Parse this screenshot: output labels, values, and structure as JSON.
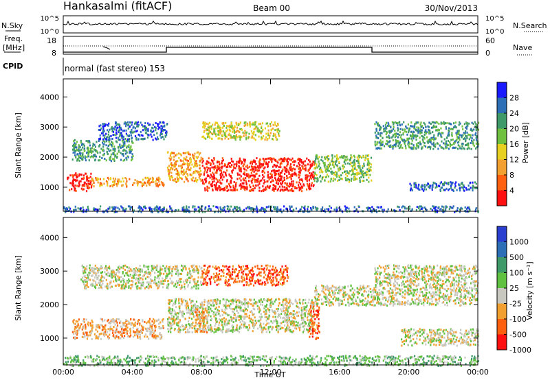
{
  "header": {
    "station": "Hankasalmi (fitACF)",
    "beam": "Beam 00",
    "date": "30/Nov/2013"
  },
  "nsky_panel": {
    "left_label": "N.Sky",
    "left_ticks": [
      "10^5",
      "10^0"
    ],
    "right_label": "N.Search",
    "right_ticks": [
      "10^5",
      "10^0"
    ]
  },
  "freq_panel": {
    "left_label_line1": "Freq.",
    "left_label_line2": "[MHz]",
    "left_ticks": [
      "18",
      "8"
    ],
    "right_label": "Nave",
    "right_ticks": [
      "60",
      "0"
    ]
  },
  "cpid_panel": {
    "label": "CPID",
    "mode_text": "normal (fast stereo) 153"
  },
  "chart_data": [
    {
      "type": "heatmap",
      "name": "power",
      "ylabel": "Slant Range [km]",
      "xlabel": "",
      "x_ticks": [
        "00:00",
        "04:00",
        "08:00",
        "12:00",
        "16:00",
        "20:00",
        "00:00"
      ],
      "y_ticks": [
        1000,
        2000,
        3000,
        4000
      ],
      "ylim": [
        200,
        4600
      ],
      "xlim_hours": [
        0,
        24
      ],
      "colorbar": {
        "label": "Power [dB]",
        "ticks": [
          "4",
          "8",
          "12",
          "16",
          "20",
          "24",
          "28"
        ],
        "colors": [
          "#1a1aff",
          "#2c6fb7",
          "#3f9a6a",
          "#70c040",
          "#e8d020",
          "#f2a030",
          "#ff6010",
          "#ff1010"
        ]
      },
      "echo_regions": [
        {
          "t": [
            0.2,
            1.6
          ],
          "range": [
            900,
            1500
          ],
          "level": 7
        },
        {
          "t": [
            1.6,
            5.8
          ],
          "range": [
            1050,
            1350
          ],
          "level": 5
        },
        {
          "t": [
            6.0,
            8.0
          ],
          "range": [
            1200,
            2200
          ],
          "level": 5
        },
        {
          "t": [
            8.0,
            14.5
          ],
          "range": [
            900,
            2000
          ],
          "level": 7
        },
        {
          "t": [
            14.5,
            17.8
          ],
          "range": [
            1200,
            2100
          ],
          "level": 3
        },
        {
          "t": [
            0.5,
            4.0
          ],
          "range": [
            1900,
            2600
          ],
          "level": 2
        },
        {
          "t": [
            2.0,
            6.0
          ],
          "range": [
            2600,
            3200
          ],
          "level": 1
        },
        {
          "t": [
            8.0,
            12.5
          ],
          "range": [
            2600,
            3200
          ],
          "level": 4
        },
        {
          "t": [
            18.0,
            24.0
          ],
          "range": [
            2300,
            3200
          ],
          "level": 2
        },
        {
          "t": [
            20.0,
            24.0
          ],
          "range": [
            900,
            1200
          ],
          "level": 1
        },
        {
          "t": [
            0.0,
            24.0
          ],
          "range": [
            200,
            400
          ],
          "level": 1
        }
      ]
    },
    {
      "type": "heatmap",
      "name": "velocity",
      "ylabel": "Slant Range [km]",
      "xlabel": "Time UT",
      "x_ticks": [
        "00:00",
        "04:00",
        "08:00",
        "12:00",
        "16:00",
        "20:00",
        "00:00"
      ],
      "y_ticks": [
        1000,
        2000,
        3000,
        4000
      ],
      "ylim": [
        200,
        4600
      ],
      "xlim_hours": [
        0,
        24
      ],
      "colorbar": {
        "label": "Velocity [m s⁻¹]",
        "ticks": [
          "1000",
          "500",
          "100",
          "25",
          "-25",
          "-100",
          "-500",
          "-1000"
        ],
        "colors": [
          "#2a3fd0",
          "#2c6fb7",
          "#3f9a6a",
          "#60c040",
          "#c8c8c0",
          "#f2a030",
          "#ff6010",
          "#ff1010"
        ]
      },
      "echo_regions": [
        {
          "t": [
            0.5,
            5.8
          ],
          "range": [
            1000,
            1600
          ],
          "level": 5
        },
        {
          "t": [
            6.0,
            14.5
          ],
          "range": [
            1200,
            2200
          ],
          "level": 4
        },
        {
          "t": [
            7.5,
            8.3
          ],
          "range": [
            1200,
            1900
          ],
          "level": 5
        },
        {
          "t": [
            14.2,
            14.8
          ],
          "range": [
            1000,
            2000
          ],
          "level": 6
        },
        {
          "t": [
            1.0,
            8.0
          ],
          "range": [
            2500,
            3200
          ],
          "level": 4
        },
        {
          "t": [
            8.0,
            13.0
          ],
          "range": [
            2600,
            3200
          ],
          "level": 6
        },
        {
          "t": [
            14.5,
            18.0
          ],
          "range": [
            2000,
            2600
          ],
          "level": 4
        },
        {
          "t": [
            18.0,
            24.0
          ],
          "range": [
            2000,
            3200
          ],
          "level": 4
        },
        {
          "t": [
            19.5,
            24.0
          ],
          "range": [
            800,
            1300
          ],
          "level": 4
        },
        {
          "t": [
            0.0,
            24.0
          ],
          "range": [
            200,
            500
          ],
          "level": 3
        }
      ]
    }
  ]
}
